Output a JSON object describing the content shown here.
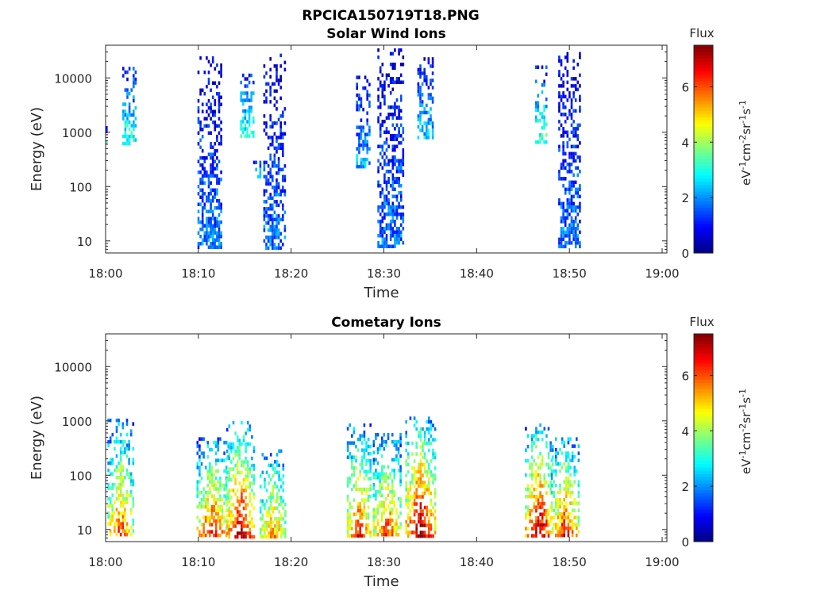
{
  "figure_title": "RPCICA150719T18.PNG",
  "colormap": [
    "#00007f",
    "#0000ff",
    "#007fff",
    "#00ffff",
    "#7fff7f",
    "#ffff00",
    "#ff7f00",
    "#ff0000",
    "#7f0000"
  ],
  "chart_data": [
    {
      "type": "heatmap",
      "title": "Solar Wind Ions",
      "xlabel": "Time",
      "ylabel": "Energy (eV)",
      "x_tick_labels": [
        "18:00",
        "18:10",
        "18:20",
        "18:30",
        "18:40",
        "18:50",
        "19:00"
      ],
      "x_range": [
        "18:00",
        "19:00"
      ],
      "y_scale": "log",
      "y_range": [
        6,
        40000
      ],
      "y_ticks": [
        10,
        100,
        1000,
        10000
      ],
      "y_tick_labels": [
        "10",
        "100",
        "1000",
        "10000"
      ],
      "colorbar": {
        "title": "Flux",
        "label": "eV-1cm-2sr-1s-1",
        "range": [
          0,
          7.5
        ],
        "ticks": [
          0,
          2,
          4,
          6
        ],
        "tick_labels": [
          "0",
          "2",
          "4",
          "6"
        ]
      },
      "clusters": [
        {
          "t_start": 0.0,
          "t_end": 0.1,
          "e_min": 600,
          "e_max": 1300,
          "flux": 2.5
        },
        {
          "t_start": 1.8,
          "t_end": 3.3,
          "e_min": 600,
          "e_max": 16000,
          "flux": 2.3
        },
        {
          "t_start": 9.9,
          "t_end": 12.6,
          "e_min": 7,
          "e_max": 25000,
          "flux": 1.3
        },
        {
          "t_start": 14.5,
          "t_end": 16.0,
          "e_min": 800,
          "e_max": 12000,
          "flux": 2.3
        },
        {
          "t_start": 15.9,
          "t_end": 16.8,
          "e_min": 150,
          "e_max": 300,
          "flux": 2.3
        },
        {
          "t_start": 17.0,
          "t_end": 19.4,
          "e_min": 7,
          "e_max": 28000,
          "flux": 1.3
        },
        {
          "t_start": 27.0,
          "t_end": 28.6,
          "e_min": 200,
          "e_max": 11000,
          "flux": 1.6
        },
        {
          "t_start": 29.3,
          "t_end": 32.2,
          "e_min": 7,
          "e_max": 35000,
          "flux": 1.3
        },
        {
          "t_start": 33.6,
          "t_end": 35.3,
          "e_min": 700,
          "e_max": 24000,
          "flux": 1.8
        },
        {
          "t_start": 46.3,
          "t_end": 47.6,
          "e_min": 600,
          "e_max": 17000,
          "flux": 2.4
        },
        {
          "t_start": 48.8,
          "t_end": 51.2,
          "e_min": 7,
          "e_max": 30000,
          "flux": 1.3
        }
      ]
    },
    {
      "type": "heatmap",
      "title": "Cometary Ions",
      "xlabel": "Time",
      "ylabel": "Energy (eV)",
      "x_tick_labels": [
        "18:00",
        "18:10",
        "18:20",
        "18:30",
        "18:40",
        "18:50",
        "19:00"
      ],
      "x_range": [
        "18:00",
        "19:00"
      ],
      "y_scale": "log",
      "y_range": [
        6,
        40000
      ],
      "y_ticks": [
        10,
        100,
        1000,
        10000
      ],
      "y_tick_labels": [
        "10",
        "100",
        "1000",
        "10000"
      ],
      "colorbar": {
        "title": "Flux",
        "label": "eV-1cm-2sr-1s-1",
        "range": [
          0,
          7.5
        ],
        "ticks": [
          0,
          2,
          4,
          6
        ],
        "tick_labels": [
          "0",
          "2",
          "4",
          "6"
        ]
      },
      "clusters": [
        {
          "t_start": 0.2,
          "t_end": 3.2,
          "e_min": 7,
          "e_max": 1100,
          "flux": 5.8
        },
        {
          "t_start": 9.8,
          "t_end": 13.3,
          "e_min": 7,
          "e_max": 500,
          "flux": 6.3
        },
        {
          "t_start": 13.0,
          "t_end": 16.2,
          "e_min": 7,
          "e_max": 1000,
          "flux": 7.0
        },
        {
          "t_start": 16.6,
          "t_end": 19.5,
          "e_min": 7,
          "e_max": 300,
          "flux": 5.5
        },
        {
          "t_start": 26.0,
          "t_end": 28.6,
          "e_min": 7,
          "e_max": 900,
          "flux": 6.2
        },
        {
          "t_start": 28.8,
          "t_end": 32.0,
          "e_min": 7,
          "e_max": 600,
          "flux": 6.0
        },
        {
          "t_start": 32.3,
          "t_end": 35.6,
          "e_min": 7,
          "e_max": 1200,
          "flux": 7.2
        },
        {
          "t_start": 45.2,
          "t_end": 48.4,
          "e_min": 7,
          "e_max": 900,
          "flux": 7.0
        },
        {
          "t_start": 48.0,
          "t_end": 51.2,
          "e_min": 7,
          "e_max": 500,
          "flux": 6.3
        }
      ]
    }
  ]
}
